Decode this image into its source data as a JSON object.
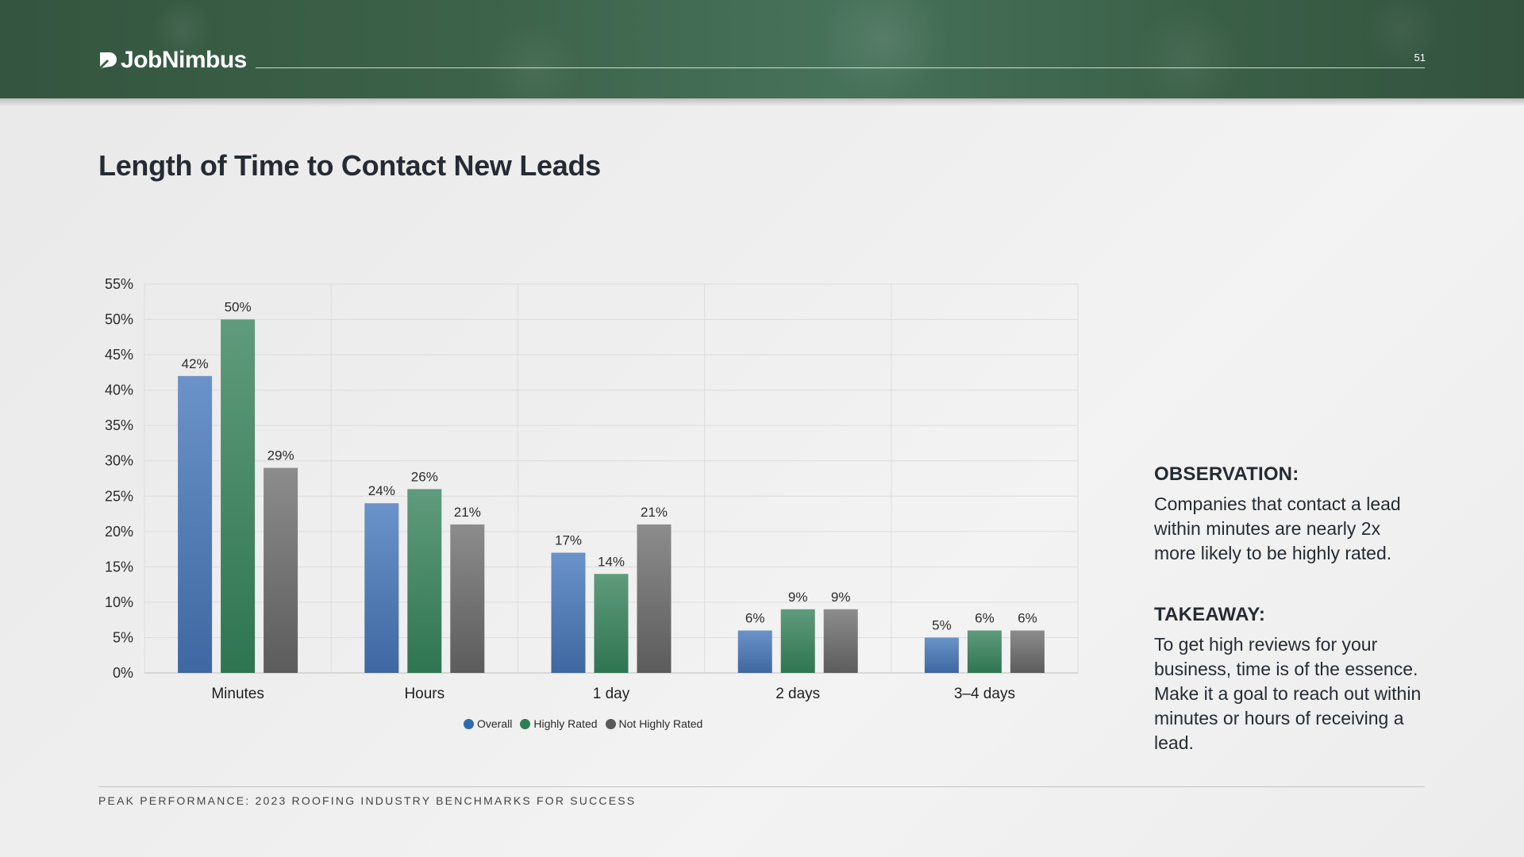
{
  "brand": {
    "name": "JobNimbus",
    "page_number": "51"
  },
  "title": "Length of Time to Contact New Leads",
  "colors": {
    "overall": "#4f7bb4",
    "highly_rated": "#3e8562",
    "not_highly_rated": "#6e6e6e"
  },
  "chart_data": {
    "type": "bar",
    "categories": [
      "Minutes",
      "Hours",
      "1 day",
      "2 days",
      "3–4 days"
    ],
    "series": [
      {
        "name": "Overall",
        "values": [
          42,
          24,
          17,
          6,
          5
        ]
      },
      {
        "name": "Highly Rated",
        "values": [
          50,
          26,
          14,
          9,
          6
        ]
      },
      {
        "name": "Not Highly Rated",
        "values": [
          29,
          21,
          21,
          9,
          6
        ]
      }
    ],
    "data_labels": [
      [
        "42%",
        "24%",
        "17%",
        "6%",
        "5%"
      ],
      [
        "50%",
        "26%",
        "14%",
        "9%",
        "6%"
      ],
      [
        "29%",
        "21%",
        "21%",
        "9%",
        "6%"
      ]
    ],
    "yticks": [
      "0%",
      "5%",
      "10%",
      "15%",
      "20%",
      "25%",
      "30%",
      "35%",
      "40%",
      "45%",
      "50%",
      "55%"
    ],
    "ylim": [
      0,
      55
    ],
    "grid": true,
    "legend_position": "bottom"
  },
  "observation": {
    "heading": "OBSERVATION:",
    "text": "Companies that contact a lead within minutes are nearly 2x more likely to be highly rated."
  },
  "takeaway": {
    "heading": "TAKEAWAY:",
    "text": "To get high reviews for your business, time is of the essence. Make it a goal to reach out within minutes or hours of receiving a lead."
  },
  "footer": "PEAK PERFORMANCE: 2023 ROOFING INDUSTRY BENCHMARKS FOR SUCCESS"
}
